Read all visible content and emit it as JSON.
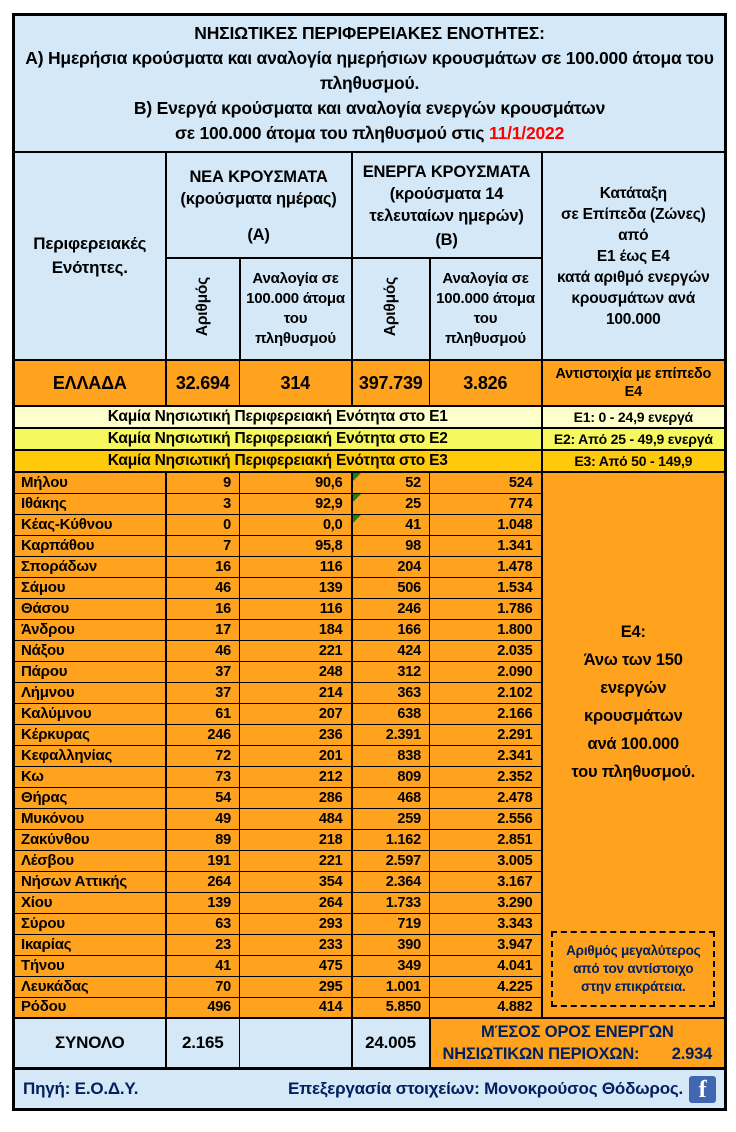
{
  "colors": {
    "light_blue": "#D4E8F7",
    "orange": "#FFA21E",
    "zone_e1_yellow": "#FFFFCC",
    "zone_e2_yellow": "#F7F75F",
    "zone_e3_gold": "#FFC90C",
    "date_red": "#FF0000",
    "navy_text": "#002060",
    "facebook_blue": "#4267B2",
    "flag_green": "#1E7E1E"
  },
  "title": {
    "heading": "ΝΗΣΙΩΤΙΚΕΣ ΠΕΡΙΦΕΡΕΙΑΚΕΣ ΕΝΟΤΗΤΕΣ:",
    "line_a": "Α) Ημερήσια κρούσματα και αναλογία ημερήσιων κρουσμάτων σε 100.000 άτομα του πληθυσμού.",
    "line_b": "Β) Ενεργά κρούσματα και αναλογία ενεργών κρουσμάτων",
    "line_c_prefix": "σε 100.000 άτομα του πληθυσμού στις",
    "date": "11/1/2022"
  },
  "headers": {
    "region": "Περιφερειακές Ενότητες.",
    "group_a_title": "ΝΕΑ ΚΡΟΥΣΜΑΤΑ",
    "group_a_sub": "(κρούσματα ημέρας)",
    "group_a_tag": "(Α)",
    "group_b_title": "ΕΝΕΡΓΑ ΚΡΟΥΣΜΑΤΑ",
    "group_b_sub": "(κρούσματα 14\nτελευταίων ημερών)",
    "group_b_tag": "(Β)",
    "count": "Αριθμός",
    "ratio": "Αναλογία σε 100.000 άτομα του πληθυσμού",
    "zone_classification": "Κατάταξη\nσε Επίπεδα (Ζώνες)\nαπό\nΕ1 έως Ε4\nκατά αριθμό ενεργών\nκρουσμάτων ανά\n100.000"
  },
  "greece": {
    "name": "ΕΛΛΑΔΑ",
    "new_cases": "32.694",
    "new_ratio": "314",
    "active_cases": "397.739",
    "active_ratio": "3.826",
    "zone_note": "Αντιστοιχία με επίπεδο Ε4"
  },
  "zones": [
    {
      "message": "Καμία Νησιωτική Περιφερειακή Ενότητα στο Ε1",
      "label": "Ε1: 0 - 24,9 ενεργά"
    },
    {
      "message": "Καμία Νησιωτική Περιφερειακή Ενότητα στο Ε2",
      "label": "Ε2: Από 25 - 49,9 ενεργά"
    },
    {
      "message": "Καμία Νησιωτική Περιφερειακή Ενότητα στο Ε3",
      "label": "Ε3: Από 50 - 149,9"
    }
  ],
  "islands": [
    {
      "name": "Μήλου",
      "new_cases": "9",
      "new_ratio": "90,6",
      "active_cases": "52",
      "active_ratio": "524",
      "flag": true
    },
    {
      "name": "Ιθάκης",
      "new_cases": "3",
      "new_ratio": "92,9",
      "active_cases": "25",
      "active_ratio": "774",
      "flag": true
    },
    {
      "name": "Κέας-Κύθνου",
      "new_cases": "0",
      "new_ratio": "0,0",
      "active_cases": "41",
      "active_ratio": "1.048",
      "flag": true
    },
    {
      "name": "Καρπάθου",
      "new_cases": "7",
      "new_ratio": "95,8",
      "active_cases": "98",
      "active_ratio": "1.341",
      "flag": false
    },
    {
      "name": "Σποράδων",
      "new_cases": "16",
      "new_ratio": "116",
      "active_cases": "204",
      "active_ratio": "1.478",
      "flag": false
    },
    {
      "name": "Σάμου",
      "new_cases": "46",
      "new_ratio": "139",
      "active_cases": "506",
      "active_ratio": "1.534",
      "flag": false
    },
    {
      "name": "Θάσου",
      "new_cases": "16",
      "new_ratio": "116",
      "active_cases": "246",
      "active_ratio": "1.786",
      "flag": false
    },
    {
      "name": "Άνδρου",
      "new_cases": "17",
      "new_ratio": "184",
      "active_cases": "166",
      "active_ratio": "1.800",
      "flag": false
    },
    {
      "name": "Νάξου",
      "new_cases": "46",
      "new_ratio": "221",
      "active_cases": "424",
      "active_ratio": "2.035",
      "flag": false
    },
    {
      "name": "Πάρου",
      "new_cases": "37",
      "new_ratio": "248",
      "active_cases": "312",
      "active_ratio": "2.090",
      "flag": false
    },
    {
      "name": "Λήμνου",
      "new_cases": "37",
      "new_ratio": "214",
      "active_cases": "363",
      "active_ratio": "2.102",
      "flag": false
    },
    {
      "name": "Καλύμνου",
      "new_cases": "61",
      "new_ratio": "207",
      "active_cases": "638",
      "active_ratio": "2.166",
      "flag": false
    },
    {
      "name": "Κέρκυρας",
      "new_cases": "246",
      "new_ratio": "236",
      "active_cases": "2.391",
      "active_ratio": "2.291",
      "flag": false
    },
    {
      "name": "Κεφαλληνίας",
      "new_cases": "72",
      "new_ratio": "201",
      "active_cases": "838",
      "active_ratio": "2.341",
      "flag": false
    },
    {
      "name": "Κω",
      "new_cases": "73",
      "new_ratio": "212",
      "active_cases": "809",
      "active_ratio": "2.352",
      "flag": false
    },
    {
      "name": "Θήρας",
      "new_cases": "54",
      "new_ratio": "286",
      "active_cases": "468",
      "active_ratio": "2.478",
      "flag": false
    },
    {
      "name": "Μυκόνου",
      "new_cases": "49",
      "new_ratio": "484",
      "active_cases": "259",
      "active_ratio": "2.556",
      "flag": false
    },
    {
      "name": "Ζακύνθου",
      "new_cases": "89",
      "new_ratio": "218",
      "active_cases": "1.162",
      "active_ratio": "2.851",
      "flag": false
    },
    {
      "name": "Λέσβου",
      "new_cases": "191",
      "new_ratio": "221",
      "active_cases": "2.597",
      "active_ratio": "3.005",
      "flag": false
    },
    {
      "name": "Νήσων Αττικής",
      "new_cases": "264",
      "new_ratio": "354",
      "active_cases": "2.364",
      "active_ratio": "3.167",
      "flag": false
    },
    {
      "name": "Χίου",
      "new_cases": "139",
      "new_ratio": "264",
      "active_cases": "1.733",
      "active_ratio": "3.290",
      "flag": false
    },
    {
      "name": "Σύρου",
      "new_cases": "63",
      "new_ratio": "293",
      "active_cases": "719",
      "active_ratio": "3.343",
      "flag": false
    },
    {
      "name": "Ικαρίας",
      "new_cases": "23",
      "new_ratio": "233",
      "active_cases": "390",
      "active_ratio": "3.947",
      "flag": false
    },
    {
      "name": "Τήνου",
      "new_cases": "41",
      "new_ratio": "475",
      "active_cases": "349",
      "active_ratio": "4.041",
      "flag": false
    },
    {
      "name": "Λευκάδας",
      "new_cases": "70",
      "new_ratio": "295",
      "active_cases": "1.001",
      "active_ratio": "4.225",
      "flag": false
    },
    {
      "name": "Ρόδου",
      "new_cases": "496",
      "new_ratio": "414",
      "active_cases": "5.850",
      "active_ratio": "4.882",
      "flag": false
    }
  ],
  "e4_note": "Ε4:\nΆνω των 150\nενεργών\nκρουσμάτων\nανά 100.000\nτου πληθυσμού.",
  "callout": "Αριθμός μεγαλύτερος από τον αντίστοιχο στην επικράτεια.",
  "totals": {
    "label": "ΣΥΝΟΛΟ",
    "new_cases": "2.165",
    "active_cases": "24.005",
    "avg_line1": "ΜΈΣΟΣ ΟΡΟΣ ΕΝΕΡΓΩΝ",
    "avg_line2": "ΝΗΣΙΩΤΙΚΩΝ ΠΕΡΙΟΧΩΝ:",
    "avg_value": "2.934"
  },
  "footer": {
    "source": "Πηγή: Ε.Ο.Δ.Υ.",
    "credit": "Επεξεργασία στοιχείων: Μονοκρούσος Θόδωρος.",
    "facebook_glyph": "f"
  },
  "chart_data": {
    "type": "table",
    "title": "ΝΗΣΙΩΤΙΚΕΣ ΠΕΡΙΦΕΡΕΙΑΚΕΣ ΕΝΟΤΗΤΕΣ",
    "date": "11/1/2022",
    "columns": [
      "Περιφερειακές Ενότητες",
      "Νέα κρούσματα (Αριθμός)",
      "Νέα κρούσματα ανά 100.000 πληθυσμού",
      "Ενεργά κρούσματα 14 ημερών (Αριθμός)",
      "Ενεργά κρούσματα ανά 100.000 πληθυσμού"
    ],
    "rows": [
      [
        "ΕΛΛΑΔΑ",
        32694,
        314,
        397739,
        3826
      ],
      [
        "Μήλου",
        9,
        90.6,
        52,
        524
      ],
      [
        "Ιθάκης",
        3,
        92.9,
        25,
        774
      ],
      [
        "Κέας-Κύθνου",
        0,
        0.0,
        41,
        1048
      ],
      [
        "Καρπάθου",
        7,
        95.8,
        98,
        1341
      ],
      [
        "Σποράδων",
        16,
        116,
        204,
        1478
      ],
      [
        "Σάμου",
        46,
        139,
        506,
        1534
      ],
      [
        "Θάσου",
        16,
        116,
        246,
        1786
      ],
      [
        "Άνδρου",
        17,
        184,
        166,
        1800
      ],
      [
        "Νάξου",
        46,
        221,
        424,
        2035
      ],
      [
        "Πάρου",
        37,
        248,
        312,
        2090
      ],
      [
        "Λήμνου",
        37,
        214,
        363,
        2102
      ],
      [
        "Καλύμνου",
        61,
        207,
        638,
        2166
      ],
      [
        "Κέρκυρας",
        246,
        236,
        2391,
        2291
      ],
      [
        "Κεφαλληνίας",
        72,
        201,
        838,
        2341
      ],
      [
        "Κω",
        73,
        212,
        809,
        2352
      ],
      [
        "Θήρας",
        54,
        286,
        468,
        2478
      ],
      [
        "Μυκόνου",
        49,
        484,
        259,
        2556
      ],
      [
        "Ζακύνθου",
        89,
        218,
        1162,
        2851
      ],
      [
        "Λέσβου",
        191,
        221,
        2597,
        3005
      ],
      [
        "Νήσων Αττικής",
        264,
        354,
        2364,
        3167
      ],
      [
        "Χίου",
        139,
        264,
        1733,
        3290
      ],
      [
        "Σύρου",
        63,
        293,
        719,
        3343
      ],
      [
        "Ικαρίας",
        23,
        233,
        390,
        3947
      ],
      [
        "Τήνου",
        41,
        475,
        349,
        4041
      ],
      [
        "Λευκάδας",
        70,
        295,
        1001,
        4225
      ],
      [
        "Ρόδου",
        496,
        414,
        5850,
        4882
      ],
      [
        "ΣΥΝΟΛΟ",
        2165,
        null,
        24005,
        null
      ]
    ],
    "zone_legend": [
      "Ε1: 0 - 24,9 ενεργά",
      "Ε2: Από 25 - 49,9 ενεργά",
      "Ε3: Από 50 - 149,9",
      "Ε4: Άνω των 150 ενεργών κρουσμάτων ανά 100.000 του πληθυσμού"
    ],
    "average_active_ratio_islands": 2934
  }
}
